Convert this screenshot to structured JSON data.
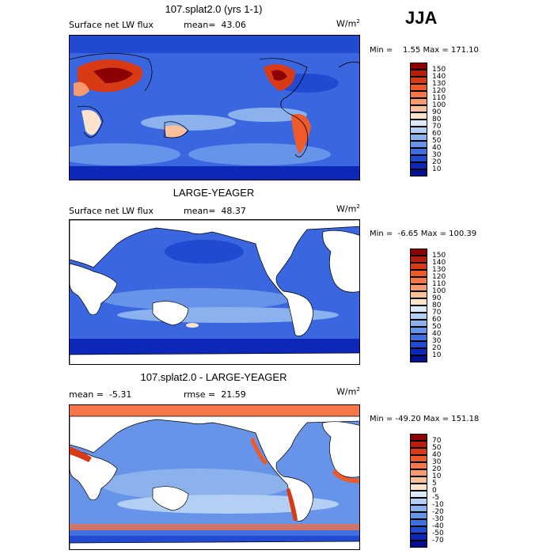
{
  "season": "JJA",
  "panels": [
    {
      "title": "107.splat2.0 (yrs 1-1)",
      "left_label": "Surface net LW flux",
      "right_label": "mean=  43.06",
      "units": "W/m",
      "units_sup": "2",
      "minmax": "Min =    1.55 Max = 171.10"
    },
    {
      "title": "LARGE-YEAGER",
      "left_label": "Surface net LW flux",
      "right_label": "mean=  48.37",
      "units": "W/m",
      "units_sup": "2",
      "minmax": "Min =  -6.65 Max = 100.39"
    },
    {
      "title": "107.splat2.0 - LARGE-YEAGER",
      "left_label": "mean =  -5.31",
      "right_label": "rmse =  21.59",
      "units": "W/m",
      "units_sup": "2",
      "minmax": "Min = -49.20 Max = 151.18"
    }
  ],
  "colorbars": [
    {
      "labels": [
        "150",
        "140",
        "130",
        "120",
        "110",
        "100",
        "90",
        "80",
        "70",
        "60",
        "50",
        "40",
        "30",
        "20",
        "10"
      ],
      "colors": [
        "#8b0000",
        "#b81d0c",
        "#d93a16",
        "#ee5a2a",
        "#f5774a",
        "#f89a6f",
        "#fbbf9a",
        "#fde3cc",
        "#dbe9f8",
        "#b3cff3",
        "#8cb2ee",
        "#6794e8",
        "#3f6fe0",
        "#2149d2",
        "#0d28b8",
        "#00108f"
      ]
    },
    {
      "labels": [
        "150",
        "140",
        "130",
        "120",
        "110",
        "100",
        "90",
        "80",
        "70",
        "60",
        "50",
        "40",
        "30",
        "20",
        "10"
      ],
      "colors": [
        "#8b0000",
        "#b81d0c",
        "#d93a16",
        "#ee5a2a",
        "#f5774a",
        "#f89a6f",
        "#fbbf9a",
        "#fde3cc",
        "#dbe9f8",
        "#b3cff3",
        "#8cb2ee",
        "#6794e8",
        "#3f6fe0",
        "#2149d2",
        "#0d28b8",
        "#00108f"
      ]
    },
    {
      "labels": [
        "70",
        "50",
        "40",
        "30",
        "20",
        "10",
        "5",
        "0",
        "-5",
        "-10",
        "-20",
        "-30",
        "-40",
        "-50",
        "-70"
      ],
      "colors": [
        "#8b0000",
        "#b81d0c",
        "#d93a16",
        "#ee5a2a",
        "#f5774a",
        "#f89a6f",
        "#fbbf9a",
        "#fde3cc",
        "#dbe9f8",
        "#b3cff3",
        "#8cb2ee",
        "#6794e8",
        "#3f6fe0",
        "#2149d2",
        "#0d28b8",
        "#00108f"
      ]
    }
  ]
}
